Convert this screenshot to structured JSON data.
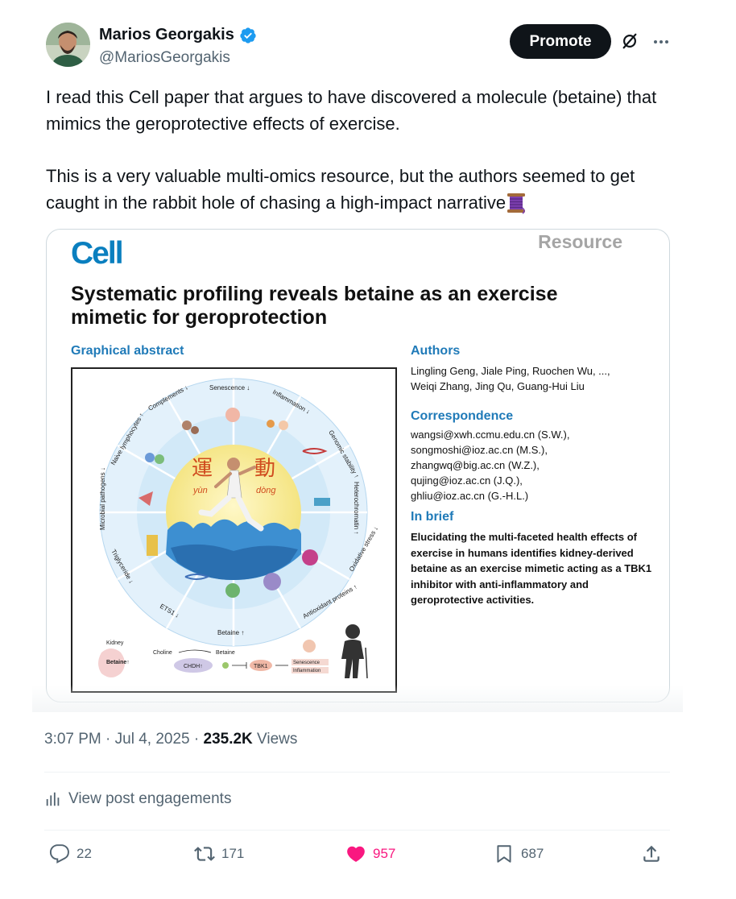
{
  "post": {
    "author_name": "Marios Georgakis",
    "author_handle": "@MariosGeorgakis",
    "promote_label": "Promote",
    "text_paragraph_1": "I read this Cell paper that argues to have discovered a molecule (betaine) that mimics the geroprotective effects of exercise.",
    "text_paragraph_2": "This is a very valuable multi-omics resource, but the authors seemed to get caught in the rabbit hole of chasing a high-impact narrative",
    "timestamp": "3:07 PM · Jul 4, 2025 · ",
    "views_count": "235.2K",
    "views_label": " Views",
    "engagements_label": "View post engagements"
  },
  "paper": {
    "journal": "Cell",
    "article_type": "Resource",
    "title": "Systematic profiling reveals betaine as an exercise mimetic for geroprotection",
    "graphical_abstract_label": "Graphical abstract",
    "authors_heading": "Authors",
    "authors_line_1": "Lingling Geng, Jiale Ping, Ruochen Wu, ...,",
    "authors_line_2": "Weiqi Zhang, Jing Qu, Guang-Hui Liu",
    "correspondence_heading": "Correspondence",
    "correspondence": [
      "wangsi@xwh.ccmu.edu.cn (S.W.),",
      "songmoshi@ioz.ac.cn (M.S.),",
      "zhangwq@big.ac.cn (W.Z.),",
      "qujing@ioz.ac.cn (J.Q.),",
      "ghliu@ioz.ac.cn (G.-H.L.)"
    ],
    "in_brief_heading": "In brief",
    "in_brief_text": "Elucidating the multi-faceted health effects of exercise in humans identifies kidney-derived betaine as an exercise mimetic acting as a TBK1 inhibitor with anti-inflammatory and geroprotective activities."
  },
  "abstract": {
    "ring_labels": [
      "Senescence ↓",
      "Inflammation ↓",
      "Genomic stability ↑",
      "Heterochromatin ↑",
      "Oxidative stress ↓",
      "Antioxidant proteins ↑",
      "Betaine ↑",
      "ETS1 ↓",
      "Triglyceride ↓",
      "Microbial pathogens ↓",
      "Naive lymphocytes ↑",
      "Complements ↓"
    ],
    "center_char_1": "運",
    "center_char_2": "動",
    "center_roman_1": "yùn",
    "center_roman_2": "dòng",
    "bottom": {
      "kidney": "Kidney",
      "betaine_up": "Betaine↑",
      "choline": "Choline",
      "betaine": "Betaine",
      "chdh": "CHDH↑",
      "tbk1": "TBK1",
      "senescence": "Senescence",
      "inflammation": "Inflammation"
    }
  },
  "actions": {
    "reply_count": "22",
    "repost_count": "171",
    "like_count": "957",
    "bookmark_count": "687"
  },
  "colors": {
    "verified": "#1d9bf0",
    "like": "#f91880",
    "cell_blue": "#0a7fbf",
    "section_blue": "#1f7ab8"
  }
}
